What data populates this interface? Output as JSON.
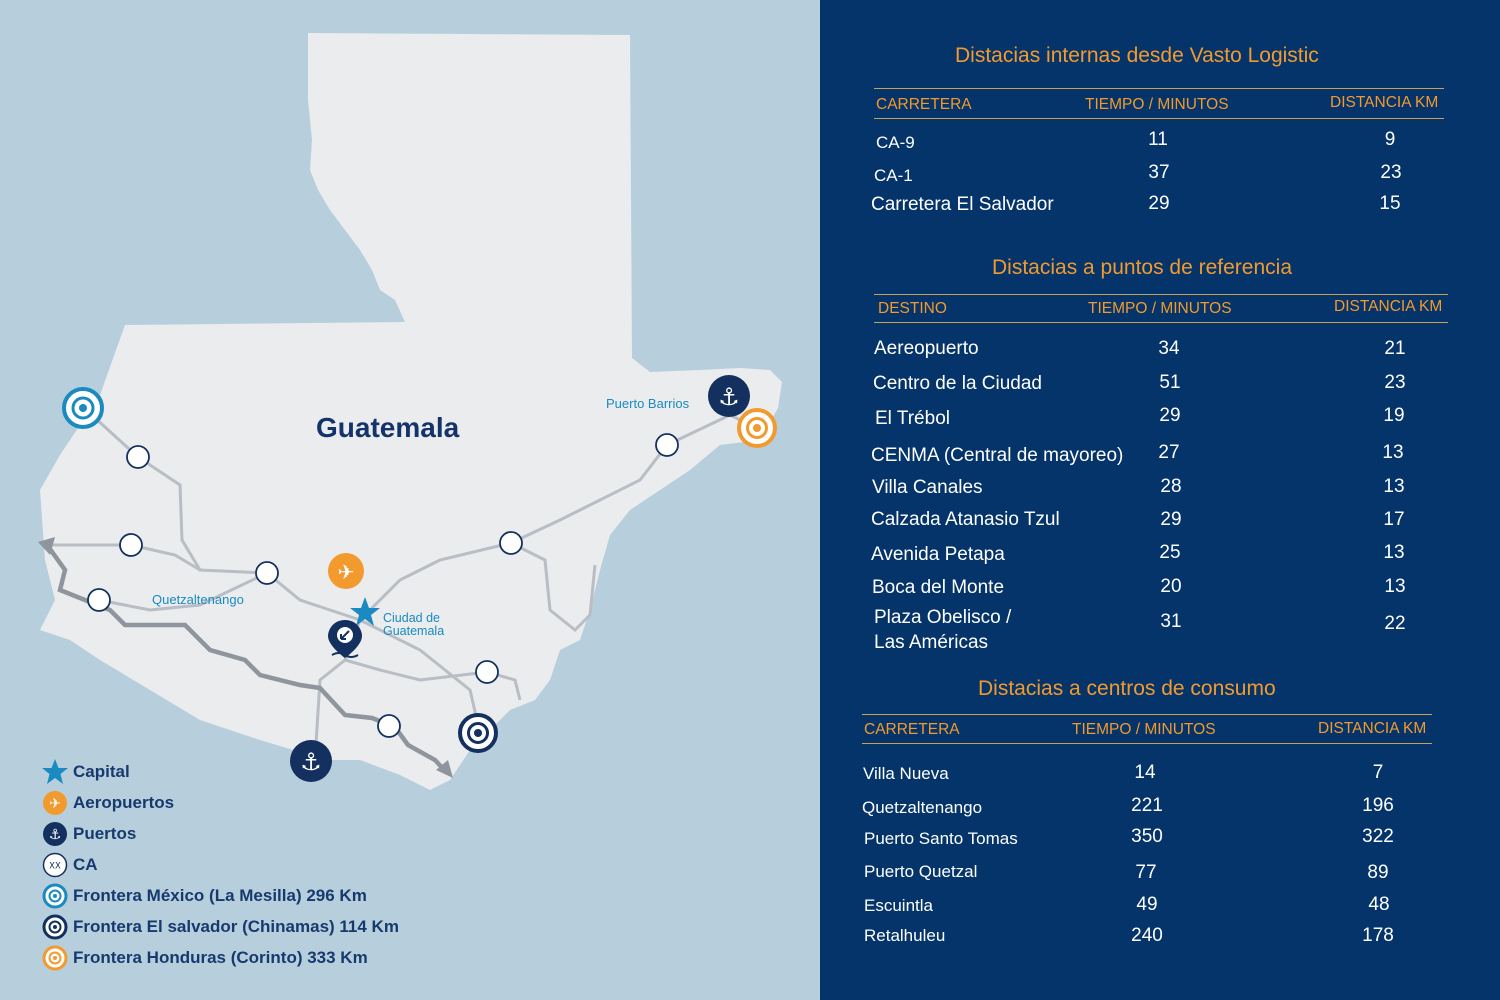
{
  "map": {
    "country_label": "Guatemala",
    "capital_label_line1": "Ciudad de",
    "capital_label_line2": "Guatemala",
    "city_label": "Quetzaltenango",
    "port_label": "Puerto Barrios"
  },
  "legend": [
    {
      "icon": "star-icon",
      "label": "Capital"
    },
    {
      "icon": "airplane-icon",
      "label": "Aeropuertos"
    },
    {
      "icon": "anchor-icon",
      "label": "Puertos"
    },
    {
      "icon": "ca-icon",
      "icon_text": "XX",
      "label": "CA"
    },
    {
      "icon": "border-target-light-icon",
      "label": "Frontera México (La Mesilla) 296 Km"
    },
    {
      "icon": "border-target-dark-icon",
      "label": "Frontera El salvador (Chinamas) 114 Km"
    },
    {
      "icon": "border-target-orange-icon",
      "label": "Frontera Honduras (Corinto) 333 Km"
    }
  ],
  "colors": {
    "ocean": "#b7cfdd",
    "land": "#eaecee",
    "panel": "#04346a",
    "accent_orange": "#f29a2e",
    "navy_icon": "#13305f",
    "light_blue_icon": "#1a8ac0"
  },
  "tables": {
    "internas": {
      "title": "Distacias internas desde Vasto Logistic",
      "headers": [
        "CARRETERA",
        "TIEMPO / MINUTOS",
        "DISTANCIA KM"
      ],
      "rows": [
        [
          "CA-9",
          "11",
          "9"
        ],
        [
          "CA-1",
          "37",
          "23"
        ],
        [
          "Carretera El Salvador",
          "29",
          "15"
        ]
      ]
    },
    "referencia": {
      "title": "Distacias a puntos de referencia",
      "headers": [
        "DESTINO",
        "TIEMPO / MINUTOS",
        "DISTANCIA KM"
      ],
      "rows": [
        [
          "Aereopuerto",
          "34",
          "21"
        ],
        [
          "Centro de la Ciudad",
          "51",
          "23"
        ],
        [
          "El Trébol",
          "29",
          "19"
        ],
        [
          "CENMA (Central de mayoreo)",
          "27",
          "13"
        ],
        [
          "Villa Canales",
          "28",
          "13"
        ],
        [
          "Calzada Atanasio Tzul",
          "29",
          "17"
        ],
        [
          "Avenida Petapa",
          "25",
          "13"
        ],
        [
          "Boca del Monte",
          "20",
          "13"
        ],
        [
          "Plaza Obelisco /",
          "31",
          "22"
        ]
      ],
      "last_row_line2": "Las Américas"
    },
    "consumo": {
      "title": "Distacias a centros de consumo",
      "headers": [
        "CARRETERA",
        "TIEMPO / MINUTOS",
        "DISTANCIA KM"
      ],
      "rows": [
        [
          "Villa Nueva",
          "14",
          "7"
        ],
        [
          "Quetzaltenango",
          "221",
          "196"
        ],
        [
          "Puerto Santo Tomas",
          "350",
          "322"
        ],
        [
          "Puerto Quetzal",
          "77",
          "89"
        ],
        [
          "Escuintla",
          "49",
          "48"
        ],
        [
          "Retalhuleu",
          "240",
          "178"
        ]
      ]
    }
  }
}
